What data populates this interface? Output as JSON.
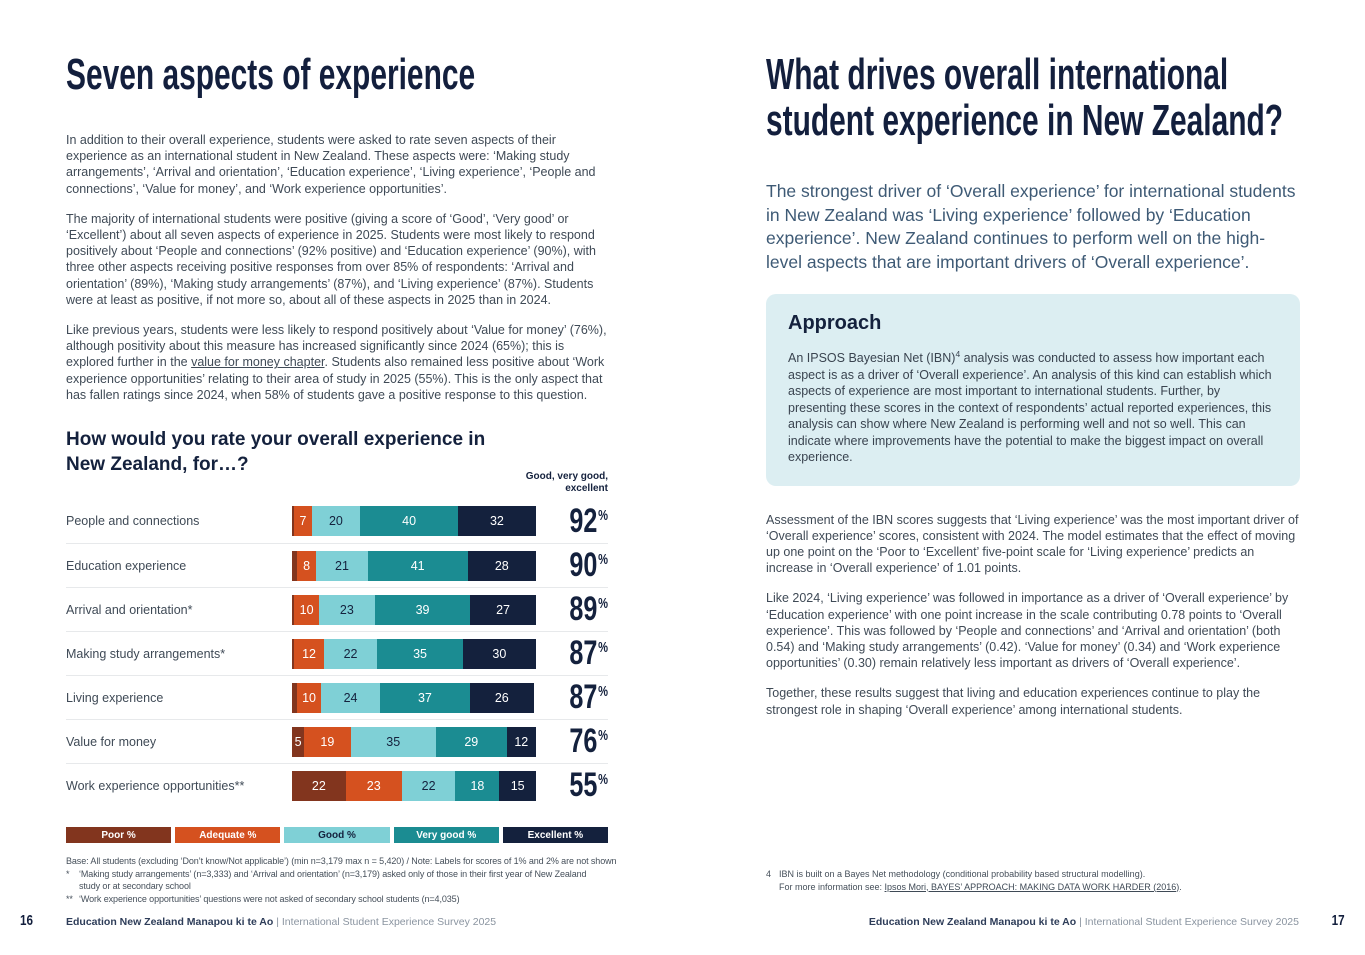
{
  "left_page": {
    "page_number": "16",
    "title": "Seven aspects of experience",
    "paragraph_1": "In addition to their overall experience, students were asked to rate seven aspects of their experience as an international student in New Zealand. These aspects were: ‘Making study arrangements’, ‘Arrival and orientation’, ‘Education experience’, ‘Living experience’, ‘People and connections’, ‘Value for money’, and ‘Work experience opportunities’.",
    "paragraph_2": "The majority of international students were positive (giving a score of ‘Good’, ‘Very good’ or ‘Excellent’) about all seven aspects of experience in 2025. Students were most likely to respond positively about ‘People and connections’ (92% positive) and ‘Education experience’ (90%), with three other aspects receiving positive responses from over 85% of respondents: ‘Arrival and orientation’ (89%), ‘Making study arrangements’ (87%), and ‘Living experience’ (87%). Students were at least as positive, if not more so, about all of these aspects in 2025 than in 2024.",
    "paragraph_3_pre": "Like previous years, students were less likely to respond positively about ‘Value for money’ (76%), although positivity about this measure has increased significantly since 2024 (65%); this is explored further in the ",
    "paragraph_3_link": "value for money chapter",
    "paragraph_3_post": ". Students also remained less positive about ‘Work experience opportunities’ relating to their area of study in 2025 (55%). This is the only aspect that has fallen ratings since 2024, when 58% of students gave a positive response to this question.",
    "footnotes": {
      "base": "Base: All students (excluding ‘Don’t know/Not applicable’) (min n=3,179 max n = 5,420) / Note: Labels for scores of 1% and 2% are not shown",
      "star1_marker": "*",
      "star1": "‘Making study arrangements’ (n=3,333) and ‘Arrival and orientation’ (n=3,179) asked only of those in their first year of New Zealand study or at secondary school",
      "star2_marker": "**",
      "star2": "‘Work experience opportunities’ questions were not asked of secondary school students (n=4,035)"
    }
  },
  "chart_data": {
    "type": "bar",
    "orientation": "horizontal-stacked",
    "title": "How would you rate your overall experience in New Zealand, for…?",
    "positive_header": "Good, very good, excellent",
    "categories": [
      "People and connections",
      "Education experience",
      "Arrival and orientation*",
      "Making study arrangements*",
      "Living experience",
      "Value for money",
      "Work experience opportunities**"
    ],
    "series": [
      {
        "name": "Poor %",
        "color": "#82351E",
        "values": [
          1,
          2,
          1,
          1,
          2,
          5,
          22
        ]
      },
      {
        "name": "Adequate %",
        "color": "#D5511F",
        "values": [
          7,
          8,
          10,
          12,
          10,
          19,
          23
        ]
      },
      {
        "name": "Good %",
        "color": "#7FD0D6",
        "values": [
          20,
          21,
          23,
          22,
          24,
          35,
          22
        ]
      },
      {
        "name": "Very good %",
        "color": "#1B8C92",
        "values": [
          40,
          41,
          39,
          35,
          37,
          29,
          18
        ]
      },
      {
        "name": "Excellent %",
        "color": "#14213D",
        "values": [
          32,
          28,
          27,
          30,
          26,
          12,
          15
        ]
      }
    ],
    "positive_totals": [
      "92",
      "90",
      "89",
      "87",
      "87",
      "76",
      "55"
    ],
    "min_label_value": 3,
    "xlim": [
      0,
      100
    ],
    "note": "Labels for scores of 1% and 2% are not shown"
  },
  "right_page": {
    "page_number": "17",
    "title_lines": [
      "What drives overall international",
      "student experience in New Zealand?"
    ],
    "intro": "The strongest driver of ‘Overall experience’ for international students in New Zealand was ‘Living experience’ followed by ‘Education experience’. New Zealand continues to perform well on the high-level aspects that are important drivers of ‘Overall experience’.",
    "approach": {
      "heading": "Approach",
      "body_pre": "An IPSOS Bayesian Net (IBN)",
      "body_sup": "4",
      "body_post": " analysis was conducted to assess how important each aspect is as a driver of ‘Overall experience’. An analysis of this kind can establish which aspects of experience are most important to international students. Further, by presenting these scores in the context of respondents’ actual reported experiences, this analysis can show where New Zealand is performing well and not so well. This can indicate where improvements have the potential to make the biggest impact on overall experience."
    },
    "paragraph_1": "Assessment of the IBN scores suggests that ‘Living experience’ was the most important driver of ‘Overall experience’ scores, consistent with 2024. The model estimates that the effect of moving up one point on the ‘Poor to ‘Excellent’ five-point scale for ‘Living experience’ predicts an increase in ‘Overall experience’ of 1.01 points.",
    "paragraph_2": "Like 2024, ‘Living experience’ was followed in importance as a driver of ‘Overall experience’ by ‘Education experience’ with one point increase in the scale contributing 0.78 points to ‘Overall experience’. This was followed by ‘People and connections’ and ‘Arrival and orientation’ (both 0.54) and ‘Making study arrangements’ (0.42). ‘Value for money’ (0.34) and ‘Work experience opportunities’ (0.30) remain relatively less important as drivers of ‘Overall experience’.",
    "paragraph_3": "Together, these results suggest that living and education experiences continue to play the strongest role in shaping ‘Overall experience’ among international students.",
    "footnote": {
      "marker": "4",
      "line1": "IBN is built on a Bayes Net methodology (conditional probability based structural modelling).",
      "line2_pre": "For more information see: ",
      "line2_link": "Ipsos Mori, BAYES’ APPROACH: MAKING DATA WORK HARDER (2016)",
      "line2_post": "."
    }
  },
  "footer": {
    "brand": "Education New Zealand Manapou ki te Ao",
    "separator": "|",
    "survey": "International Student Experience Survey 2025"
  },
  "colors": {
    "navy": "#14213D",
    "title_navy": "#131F3D",
    "body_text": "#3F4A56",
    "intro_text": "#3E5A75",
    "poor": "#82351E",
    "adequate": "#D5511F",
    "good": "#7FD0D6",
    "very_good": "#1B8C92",
    "excellent": "#14213D",
    "approach_box_bg": "#DCEEF2",
    "row_divider": "#E7E9EB",
    "footer_gray": "#8A94A0"
  }
}
